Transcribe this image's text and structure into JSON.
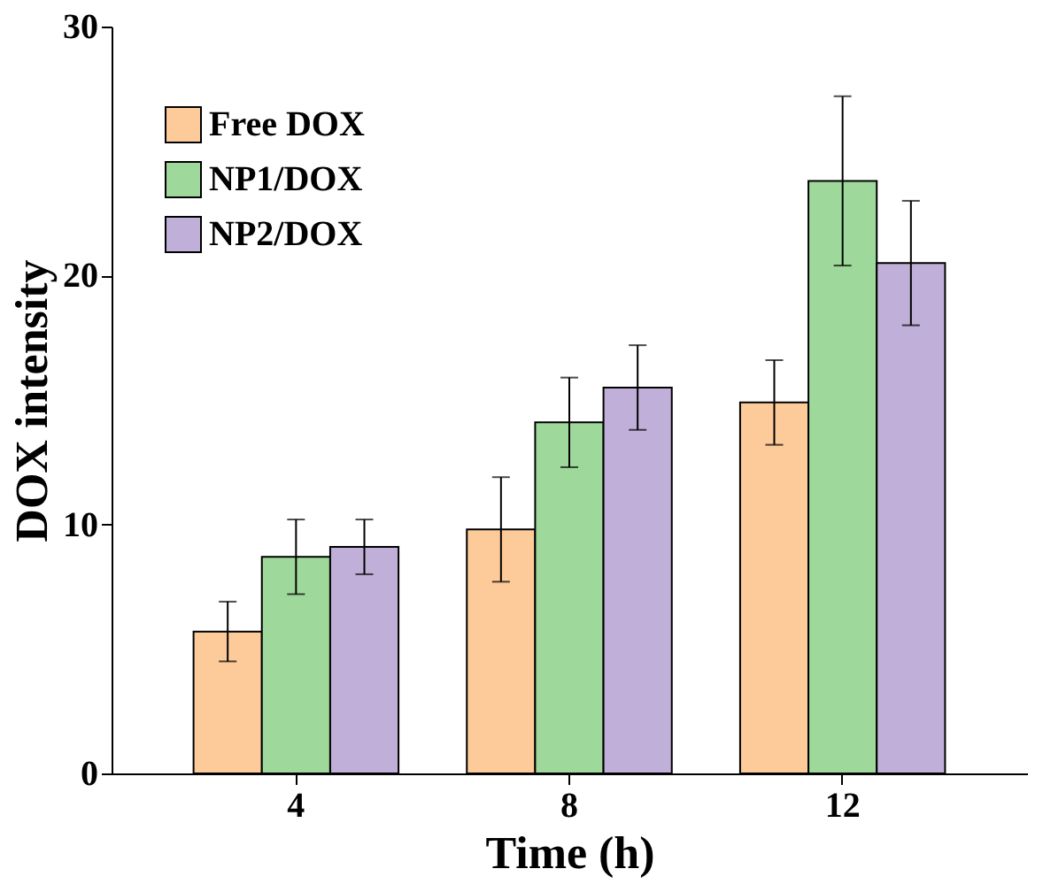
{
  "chart_data": {
    "type": "bar",
    "xlabel": "Time (h)",
    "ylabel": "DOX intensity",
    "categories": [
      "4",
      "8",
      "12"
    ],
    "ylim": [
      0,
      30
    ],
    "yticks": [
      0,
      10,
      20,
      30
    ],
    "legend": "top left",
    "grid": false,
    "series": [
      {
        "name": "Free DOX",
        "color": "#fdca9a",
        "values": [
          5.7,
          9.8,
          14.9
        ],
        "errors": [
          1.2,
          2.1,
          1.7
        ]
      },
      {
        "name": "NP1/DOX",
        "color": "#9ed99b",
        "values": [
          8.7,
          14.1,
          23.8
        ],
        "errors": [
          1.5,
          1.8,
          3.4
        ]
      },
      {
        "name": "NP2/DOX",
        "color": "#c0b0d9",
        "values": [
          9.1,
          15.5,
          20.5
        ],
        "errors": [
          1.1,
          1.7,
          2.5
        ]
      }
    ]
  }
}
